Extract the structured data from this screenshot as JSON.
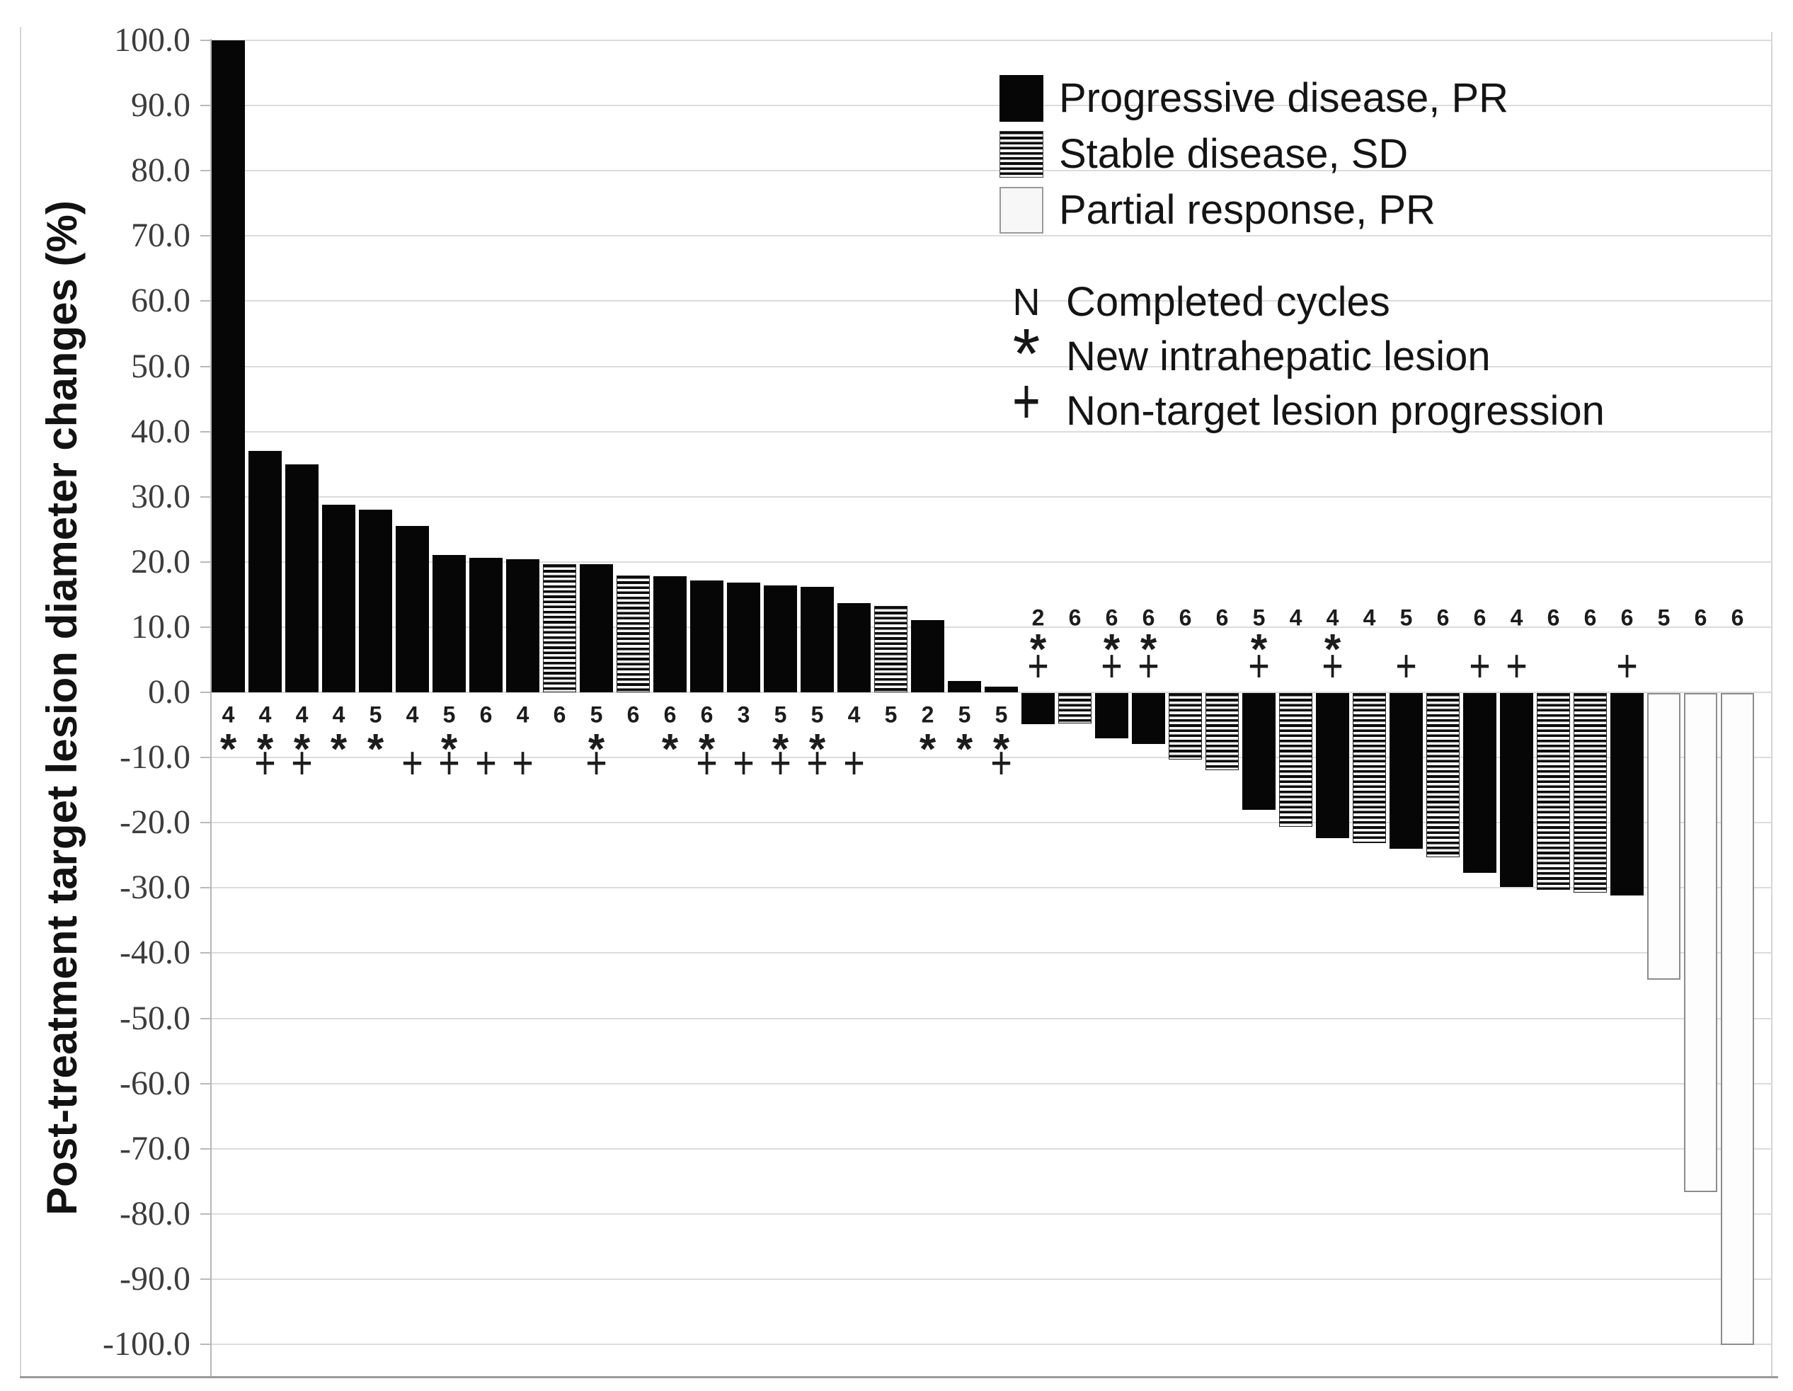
{
  "chart_data": {
    "type": "bar",
    "variant": "waterfall",
    "title": "",
    "xlabel": "",
    "ylabel": "Post-treatment target lesion diameter changes (%)",
    "ylim": [
      -100,
      100
    ],
    "ytick_step": 10,
    "ytick_labels": [
      "100.0",
      "90.0",
      "80.0",
      "70.0",
      "60.0",
      "50.0",
      "40.0",
      "30.0",
      "20.0",
      "10.0",
      "0.0",
      "-10.0",
      "-20.0",
      "-30.0",
      "-40.0",
      "-50.0",
      "-60.0",
      "-70.0",
      "-80.0",
      "-90.0",
      "-100.0"
    ],
    "grid": true,
    "legend_position": "top-right",
    "annotation_rows": {
      "positive_bars": "labels below zero line (cycles, asterisk, plus)",
      "negative_bars": "labels above zero line (cycles, asterisk, plus)"
    },
    "bars": [
      {
        "value": 100.0,
        "pattern": "black",
        "cycles": 4,
        "new_lesion": true,
        "progression": false
      },
      {
        "value": 37.0,
        "pattern": "black",
        "cycles": 4,
        "new_lesion": true,
        "progression": true
      },
      {
        "value": 35.0,
        "pattern": "black",
        "cycles": 4,
        "new_lesion": true,
        "progression": true
      },
      {
        "value": 28.8,
        "pattern": "black",
        "cycles": 4,
        "new_lesion": true,
        "progression": false
      },
      {
        "value": 28.0,
        "pattern": "black",
        "cycles": 5,
        "new_lesion": true,
        "progression": false
      },
      {
        "value": 25.5,
        "pattern": "black",
        "cycles": 4,
        "new_lesion": false,
        "progression": true
      },
      {
        "value": 21.1,
        "pattern": "black",
        "cycles": 5,
        "new_lesion": true,
        "progression": true
      },
      {
        "value": 20.6,
        "pattern": "black",
        "cycles": 6,
        "new_lesion": false,
        "progression": true
      },
      {
        "value": 20.4,
        "pattern": "black",
        "cycles": 4,
        "new_lesion": false,
        "progression": true
      },
      {
        "value": 19.6,
        "pattern": "stripes",
        "cycles": 6,
        "new_lesion": false,
        "progression": false
      },
      {
        "value": 19.7,
        "pattern": "black",
        "cycles": 5,
        "new_lesion": true,
        "progression": true
      },
      {
        "value": 17.9,
        "pattern": "stripes",
        "cycles": 6,
        "new_lesion": false,
        "progression": false
      },
      {
        "value": 17.8,
        "pattern": "black",
        "cycles": 6,
        "new_lesion": true,
        "progression": false
      },
      {
        "value": 17.2,
        "pattern": "black",
        "cycles": 6,
        "new_lesion": true,
        "progression": true
      },
      {
        "value": 16.8,
        "pattern": "black",
        "cycles": 3,
        "new_lesion": false,
        "progression": true
      },
      {
        "value": 16.4,
        "pattern": "black",
        "cycles": 5,
        "new_lesion": true,
        "progression": true
      },
      {
        "value": 16.2,
        "pattern": "black",
        "cycles": 5,
        "new_lesion": true,
        "progression": true
      },
      {
        "value": 13.7,
        "pattern": "black",
        "cycles": 4,
        "new_lesion": false,
        "progression": true
      },
      {
        "value": 13.3,
        "pattern": "stripes",
        "cycles": 5,
        "new_lesion": false,
        "progression": false
      },
      {
        "value": 11.1,
        "pattern": "black",
        "cycles": 2,
        "new_lesion": true,
        "progression": false
      },
      {
        "value": 1.7,
        "pattern": "black",
        "cycles": 5,
        "new_lesion": true,
        "progression": false
      },
      {
        "value": 0.9,
        "pattern": "black",
        "cycles": 5,
        "new_lesion": true,
        "progression": true
      },
      {
        "value": -4.8,
        "pattern": "black",
        "cycles": 2,
        "new_lesion": true,
        "progression": true
      },
      {
        "value": -4.7,
        "pattern": "stripes",
        "cycles": 6,
        "new_lesion": false,
        "progression": false
      },
      {
        "value": -6.9,
        "pattern": "black",
        "cycles": 6,
        "new_lesion": true,
        "progression": true
      },
      {
        "value": -7.8,
        "pattern": "black",
        "cycles": 6,
        "new_lesion": true,
        "progression": true
      },
      {
        "value": -10.2,
        "pattern": "stripes",
        "cycles": 6,
        "new_lesion": false,
        "progression": false
      },
      {
        "value": -11.8,
        "pattern": "stripes",
        "cycles": 6,
        "new_lesion": false,
        "progression": false
      },
      {
        "value": -17.9,
        "pattern": "black",
        "cycles": 5,
        "new_lesion": true,
        "progression": true
      },
      {
        "value": -20.5,
        "pattern": "stripes",
        "cycles": 4,
        "new_lesion": false,
        "progression": false
      },
      {
        "value": -22.3,
        "pattern": "black",
        "cycles": 4,
        "new_lesion": true,
        "progression": true
      },
      {
        "value": -23.0,
        "pattern": "stripes",
        "cycles": 4,
        "new_lesion": false,
        "progression": false
      },
      {
        "value": -23.9,
        "pattern": "black",
        "cycles": 5,
        "new_lesion": false,
        "progression": true
      },
      {
        "value": -25.2,
        "pattern": "stripes",
        "cycles": 6,
        "new_lesion": false,
        "progression": false
      },
      {
        "value": -27.6,
        "pattern": "black",
        "cycles": 6,
        "new_lesion": false,
        "progression": true
      },
      {
        "value": -29.7,
        "pattern": "black",
        "cycles": 4,
        "new_lesion": false,
        "progression": true
      },
      {
        "value": -30.2,
        "pattern": "stripes",
        "cycles": 6,
        "new_lesion": false,
        "progression": false
      },
      {
        "value": -30.6,
        "pattern": "stripes",
        "cycles": 6,
        "new_lesion": false,
        "progression": false
      },
      {
        "value": -31.0,
        "pattern": "black",
        "cycles": 6,
        "new_lesion": false,
        "progression": true
      },
      {
        "value": -44.0,
        "pattern": "white",
        "cycles": 5,
        "new_lesion": false,
        "progression": false
      },
      {
        "value": -76.5,
        "pattern": "white",
        "cycles": 6,
        "new_lesion": false,
        "progression": false
      },
      {
        "value": -100.0,
        "pattern": "white",
        "cycles": 6,
        "new_lesion": false,
        "progression": false
      }
    ]
  },
  "legend": {
    "patterns": [
      {
        "swatch": "solid-black",
        "label": "Progressive disease, PR"
      },
      {
        "swatch": "horizontal-stripes",
        "label": "Stable disease, SD"
      },
      {
        "swatch": "white",
        "label": "Partial response, PR"
      }
    ],
    "symbols": [
      {
        "symbol": "N",
        "label": "Completed cycles"
      },
      {
        "symbol": "*",
        "label": "New intrahepatic lesion"
      },
      {
        "symbol": "+",
        "label": "Non-target lesion progression"
      }
    ]
  },
  "colors": {
    "bar_black": "#060606",
    "stripe_dark": "#0b0b0b",
    "stripe_light": "#f6f6f6",
    "white_bar_border": "#8c8c8c",
    "gridline": "#dcdcdc",
    "axis": "#b7b7b7",
    "text": "#141414"
  }
}
